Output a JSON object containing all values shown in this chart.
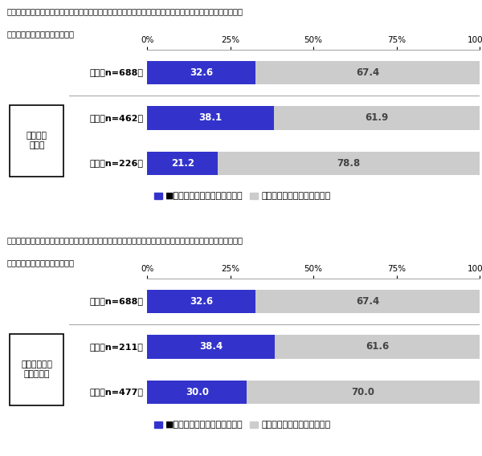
{
  "title": "アルバイト先で労働時間や賃金などの労働条件、ハラスメント、人間関係等のトラブルにあったことがあるか",
  "subtitle": "対象：アルバイト経験がある人",
  "blue_color": "#3333cc",
  "gray_color": "#cccccc",
  "legend_blue": "■トラブルにあったことがある",
  "legend_gray": "トラブルにあったことはない",
  "chart1": {
    "rows": [
      {
        "label": "全体［n=688］",
        "blue": 32.6,
        "gray": 67.4,
        "is_group": false
      },
      {
        "label": "ある［n=462］",
        "blue": 38.1,
        "gray": 61.9,
        "is_group": true
      },
      {
        "label": "ない［n=226］",
        "blue": 21.2,
        "gray": 78.8,
        "is_group": true
      }
    ],
    "group_label": "学習経験\n有無別",
    "group_rows": [
      1,
      2
    ]
  },
  "chart2": {
    "rows": [
      {
        "label": "全体［n=688］",
        "blue": 32.6,
        "gray": 67.4,
        "is_group": false
      },
      {
        "label": "ある［n=211］",
        "blue": 38.4,
        "gray": 61.6,
        "is_group": true
      },
      {
        "label": "ない［n=477］",
        "blue": 30.0,
        "gray": 70.0,
        "is_group": true
      }
    ],
    "group_label": "自分で調べた\n経験有無別",
    "group_rows": [
      1,
      2
    ]
  },
  "background_color": "#ffffff",
  "bar_height": 0.52,
  "tick_labels": [
    "0%",
    "25%",
    "50%",
    "75%",
    "100%"
  ],
  "tick_positions": [
    0,
    25,
    50,
    75,
    100
  ]
}
